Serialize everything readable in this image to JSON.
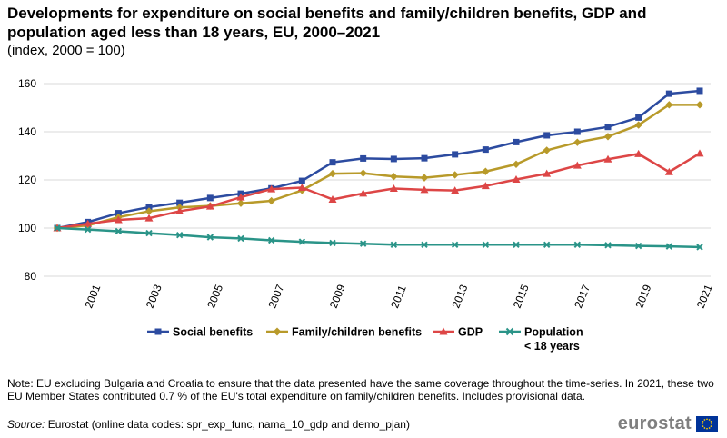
{
  "header": {
    "title": "Developments for expenditure on social benefits and family/children benefits, GDP and population aged less than 18 years, EU, 2000–2021",
    "subtitle": "(index, 2000 = 100)"
  },
  "chart_data": {
    "type": "line",
    "title": "Developments for expenditure on social benefits and family/children benefits, GDP and population aged less than 18 years, EU, 2000–2021",
    "subtitle": "(index, 2000 = 100)",
    "xlabel": "",
    "ylabel": "",
    "x": [
      2000,
      2001,
      2002,
      2003,
      2004,
      2005,
      2006,
      2007,
      2008,
      2009,
      2010,
      2011,
      2012,
      2013,
      2014,
      2015,
      2016,
      2017,
      2018,
      2019,
      2020,
      2021
    ],
    "x_tick_labels": [
      "2001",
      "2003",
      "2005",
      "2007",
      "2009",
      "2011",
      "2013",
      "2015",
      "2017",
      "2019",
      "2021"
    ],
    "ylim": [
      80,
      160
    ],
    "y_ticks": [
      80,
      100,
      120,
      140,
      160
    ],
    "grid": true,
    "legend_position": "bottom",
    "series": [
      {
        "name": "Social benefits",
        "color": "#2c4ba0",
        "marker": "square",
        "values": [
          100,
          102.5,
          106.2,
          108.7,
          110.5,
          112.5,
          114.3,
          116.5,
          119.6,
          127.3,
          128.9,
          128.7,
          129.0,
          130.6,
          132.6,
          135.7,
          138.5,
          140.0,
          142.0,
          145.9,
          155.8,
          157.0
        ]
      },
      {
        "name": "Family/children benefits",
        "color": "#b89a2a",
        "marker": "diamond",
        "values": [
          100,
          101.1,
          104.5,
          107.0,
          108.6,
          109.2,
          110.3,
          111.3,
          115.7,
          122.6,
          122.8,
          121.4,
          120.9,
          122.1,
          123.5,
          126.5,
          132.3,
          135.6,
          138.0,
          142.8,
          151.2,
          151.2
        ]
      },
      {
        "name": "GDP",
        "color": "#dd4646",
        "marker": "triangle",
        "values": [
          100,
          101.8,
          103.4,
          104.1,
          107.0,
          109.0,
          112.8,
          116.2,
          116.8,
          111.9,
          114.4,
          116.4,
          115.9,
          115.6,
          117.5,
          120.2,
          122.6,
          126.0,
          128.6,
          130.8,
          123.3,
          131.0
        ]
      },
      {
        "name": "Population\n< 18 years",
        "color": "#2a9488",
        "marker": "x",
        "values": [
          100,
          99.4,
          98.7,
          97.9,
          97.1,
          96.2,
          95.7,
          94.9,
          94.3,
          93.8,
          93.5,
          93.1,
          93.1,
          93.1,
          93.1,
          93.1,
          93.1,
          93.1,
          92.9,
          92.6,
          92.4,
          92.1
        ]
      }
    ]
  },
  "legend": {
    "items": [
      {
        "label": "Social benefits"
      },
      {
        "label": "Family/children benefits"
      },
      {
        "label": "GDP"
      },
      {
        "label_line1": "Population",
        "label_line2": "< 18 years"
      }
    ]
  },
  "footer": {
    "note": "Note: EU excluding Bulgaria and Croatia to ensure that the data presented have the same coverage throughout the time-series. In 2021, these two EU Member States contributed 0.7 % of the EU's total expenditure on family/children benefits. Includes provisional data.",
    "source_label": "Source:",
    "source_text": " Eurostat (online data codes: spr_exp_func, nama_10_gdp and demo_pjan)",
    "logo_text": "eurostat"
  }
}
